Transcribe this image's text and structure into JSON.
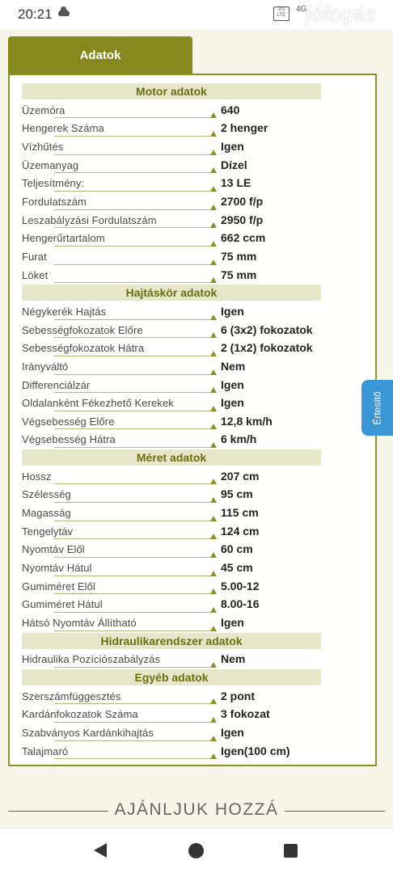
{
  "status": {
    "time": "20:21",
    "volte": "VO LTE",
    "network": "4G",
    "watermark": "jófogás"
  },
  "tab": {
    "label": "Adatok"
  },
  "side_button": {
    "label": "Értesítő"
  },
  "sections": [
    {
      "title": "Motor adatok",
      "rows": [
        {
          "label": "Üzemóra",
          "value": "640"
        },
        {
          "label": "Hengerek Száma",
          "value": "2 henger"
        },
        {
          "label": "Vízhűtés",
          "value": "Igen"
        },
        {
          "label": "Üzemanyag",
          "value": "Dízel"
        },
        {
          "label": "Teljesítmény:",
          "value": "13 LE"
        },
        {
          "label": "Fordulatszám",
          "value": "2700 f/p"
        },
        {
          "label": "Leszabályzási Fordulatszám",
          "value": "2950 f/p"
        },
        {
          "label": "Hengerűrtartalom",
          "value": "662 ccm"
        },
        {
          "label": "Furat",
          "value": "75 mm"
        },
        {
          "label": "Löket",
          "value": "75 mm"
        }
      ]
    },
    {
      "title": "Hajtáskör adatok",
      "rows": [
        {
          "label": "Négykerék Hajtás",
          "value": "Igen"
        },
        {
          "label": "Sebességfokozatok Előre",
          "value": "6 (3x2) fokozatok"
        },
        {
          "label": "Sebességfokozatok Hátra",
          "value": "2 (1x2) fokozatok"
        },
        {
          "label": "Irányváltó",
          "value": "Nem"
        },
        {
          "label": "Differenciálzár",
          "value": "Igen"
        },
        {
          "label": "Oldalanként Fékezhető Kerekek",
          "value": "Igen"
        },
        {
          "label": "Végsebesség Előre",
          "value": "12,8 km/h"
        },
        {
          "label": "Végsebesség Hátra",
          "value": "6 km/h"
        }
      ]
    },
    {
      "title": "Méret adatok",
      "rows": [
        {
          "label": "Hossz",
          "value": "207 cm"
        },
        {
          "label": "Szélesség",
          "value": "95 cm"
        },
        {
          "label": "Magasság",
          "value": "115 cm"
        },
        {
          "label": "Tengelytáv",
          "value": "124 cm"
        },
        {
          "label": "Nyomtáv Elől",
          "value": "60 cm"
        },
        {
          "label": "Nyomtáv Hátul",
          "value": "45 cm"
        },
        {
          "label": "Gumiméret Elől",
          "value": "5.00-12"
        },
        {
          "label": "Gumiméret Hátul",
          "value": "8.00-16"
        },
        {
          "label": "Hátsó Nyomtáv Állítható",
          "value": "Igen"
        }
      ]
    },
    {
      "title": "Hidraulikarendszer adatok",
      "rows": [
        {
          "label": "Hidraulika Pozíciószabályzás",
          "value": "Nem"
        }
      ]
    },
    {
      "title": "Egyéb adatok",
      "rows": [
        {
          "label": "Szerszámfüggesztés",
          "value": "2 pont"
        },
        {
          "label": "Kardánfokozatok Száma",
          "value": "3 fokozat"
        },
        {
          "label": "Szabványos Kardánkihajtás",
          "value": "Igen"
        },
        {
          "label": "Talajmaró",
          "value": "Igen(100 cm)"
        }
      ]
    }
  ],
  "recommend": {
    "label": "AJÁNLJUK HOZZÁ"
  },
  "nav": {
    "back_icon": "back-triangle",
    "home_icon": "home-circle",
    "recent_icon": "recent-square"
  }
}
